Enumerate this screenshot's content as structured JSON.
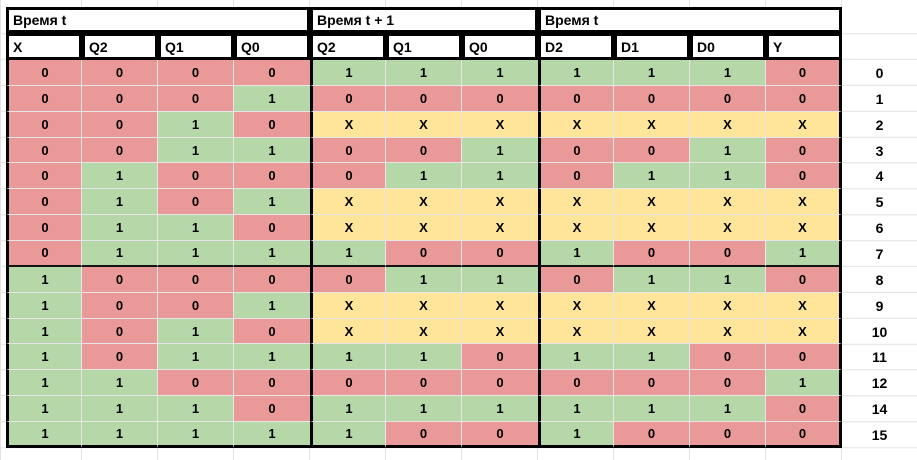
{
  "header": {
    "groups": [
      {
        "label": "Время t",
        "span": 4
      },
      {
        "label": "Время t + 1",
        "span": 3
      },
      {
        "label": "Время t",
        "span": 4
      }
    ],
    "columns": [
      "X",
      "Q2",
      "Q1",
      "Q0",
      "Q2",
      "Q1",
      "Q0",
      "D2",
      "D1",
      "D0",
      "Y"
    ]
  },
  "rows": [
    {
      "label": "0",
      "cells": [
        "0",
        "0",
        "0",
        "0",
        "1",
        "1",
        "1",
        "1",
        "1",
        "1",
        "0"
      ]
    },
    {
      "label": "1",
      "cells": [
        "0",
        "0",
        "0",
        "1",
        "0",
        "0",
        "0",
        "0",
        "0",
        "0",
        "0"
      ]
    },
    {
      "label": "2",
      "cells": [
        "0",
        "0",
        "1",
        "0",
        "X",
        "X",
        "X",
        "X",
        "X",
        "X",
        "X"
      ]
    },
    {
      "label": "3",
      "cells": [
        "0",
        "0",
        "1",
        "1",
        "0",
        "0",
        "1",
        "0",
        "0",
        "1",
        "0"
      ]
    },
    {
      "label": "4",
      "cells": [
        "0",
        "1",
        "0",
        "0",
        "0",
        "1",
        "1",
        "0",
        "1",
        "1",
        "0"
      ]
    },
    {
      "label": "5",
      "cells": [
        "0",
        "1",
        "0",
        "1",
        "X",
        "X",
        "X",
        "X",
        "X",
        "X",
        "X"
      ]
    },
    {
      "label": "6",
      "cells": [
        "0",
        "1",
        "1",
        "0",
        "X",
        "X",
        "X",
        "X",
        "X",
        "X",
        "X"
      ]
    },
    {
      "label": "7",
      "cells": [
        "0",
        "1",
        "1",
        "1",
        "1",
        "0",
        "0",
        "1",
        "0",
        "0",
        "1"
      ]
    },
    {
      "label": "8",
      "cells": [
        "1",
        "0",
        "0",
        "0",
        "0",
        "1",
        "1",
        "0",
        "1",
        "1",
        "0"
      ]
    },
    {
      "label": "9",
      "cells": [
        "1",
        "0",
        "0",
        "1",
        "X",
        "X",
        "X",
        "X",
        "X",
        "X",
        "X"
      ]
    },
    {
      "label": "10",
      "cells": [
        "1",
        "0",
        "1",
        "0",
        "X",
        "X",
        "X",
        "X",
        "X",
        "X",
        "X"
      ]
    },
    {
      "label": "11",
      "cells": [
        "1",
        "0",
        "1",
        "1",
        "1",
        "1",
        "0",
        "1",
        "1",
        "0",
        "0"
      ]
    },
    {
      "label": "12",
      "cells": [
        "1",
        "1",
        "0",
        "0",
        "0",
        "0",
        "0",
        "0",
        "0",
        "0",
        "1"
      ]
    },
    {
      "label": "14",
      "cells": [
        "1",
        "1",
        "1",
        "0",
        "1",
        "1",
        "1",
        "1",
        "1",
        "1",
        "0"
      ]
    },
    {
      "label": "15",
      "cells": [
        "1",
        "1",
        "1",
        "1",
        "1",
        "0",
        "0",
        "1",
        "0",
        "0",
        "0"
      ]
    }
  ],
  "palette": {
    "value_colors": {
      "0": "#ea9999",
      "1": "#b6d7a8",
      "X": "#ffe599"
    },
    "header_bg": "#ffffff",
    "thick_border": "#000000",
    "gridline": "#e2e2e2"
  },
  "layout_hints": {
    "thick_divider_after_row": 7
  }
}
